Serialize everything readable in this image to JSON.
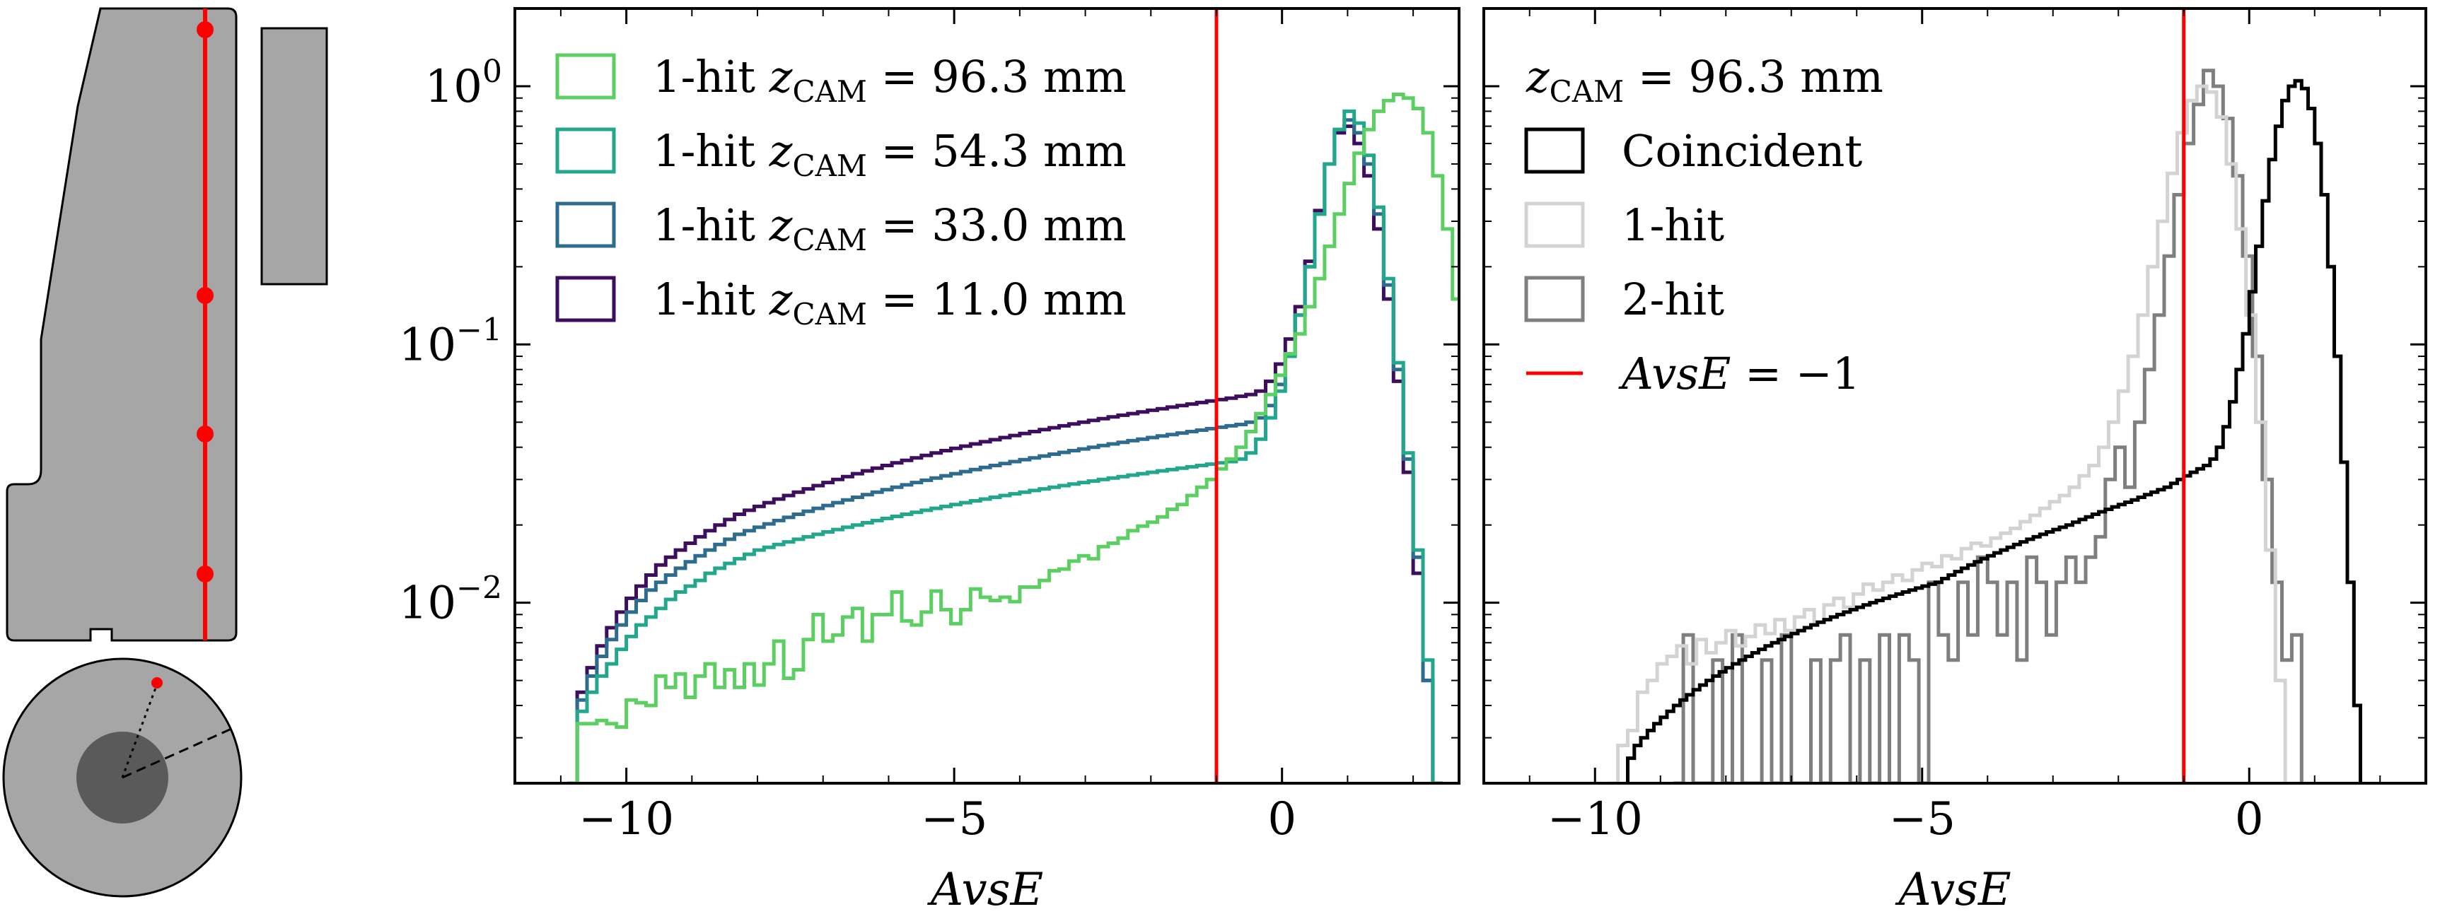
{
  "colors": {
    "detector_fill": "#a6a6a6",
    "detector_core": "#5a5a5a",
    "cut_line": "#ff0000",
    "green": "#5ccf63",
    "teal": "#22a68c",
    "blue": "#2d6b8f",
    "purple": "#3d0d5e",
    "black": "#000000",
    "lightgray": "#d3d3d3",
    "gray": "#7f7f7f"
  },
  "chart_data": [
    {
      "type": "line",
      "style": "step",
      "xlabel": "AvsE",
      "ylabel": "",
      "xlim": [
        -11.7,
        2.7
      ],
      "ylim": [
        0.002,
        2.0
      ],
      "yscale": "log",
      "xticks": [
        {
          "value": -10,
          "label": "−10"
        },
        {
          "value": -5,
          "label": "−5"
        },
        {
          "value": 0,
          "label": "0"
        }
      ],
      "yticks": [
        {
          "value": 1,
          "base": "10",
          "exp": "0"
        },
        {
          "value": 0.1,
          "base": "10",
          "exp": "−1"
        },
        {
          "value": 0.01,
          "base": "10",
          "exp": "−2"
        }
      ],
      "cut_x": -1,
      "legend_position": "top-left",
      "series": [
        {
          "name": "1-hit z_CAM = 96.3 mm",
          "prefix": "1-hit ",
          "var": "z",
          "sub": "CAM",
          "rest": " = 96.3 mm",
          "color_key": "green",
          "x_start": -10.9,
          "bin_width": 0.15,
          "values": [
            0.002,
            0.0034,
            0.0034,
            0.0035,
            0.0034,
            0.0033,
            0.0042,
            0.0041,
            0.004,
            0.0052,
            0.0047,
            0.0053,
            0.0043,
            0.0052,
            0.0058,
            0.0047,
            0.0055,
            0.0047,
            0.0058,
            0.0048,
            0.0058,
            0.0071,
            0.0051,
            0.0055,
            0.0072,
            0.009,
            0.0071,
            0.0075,
            0.0088,
            0.0095,
            0.0071,
            0.009,
            0.009,
            0.011,
            0.0085,
            0.0082,
            0.0092,
            0.0111,
            0.0094,
            0.0083,
            0.0094,
            0.0113,
            0.0105,
            0.0102,
            0.0105,
            0.0101,
            0.0115,
            0.0115,
            0.0122,
            0.0133,
            0.0135,
            0.0145,
            0.0152,
            0.0148,
            0.0165,
            0.017,
            0.0178,
            0.019,
            0.0198,
            0.0205,
            0.0215,
            0.023,
            0.024,
            0.026,
            0.028,
            0.03,
            0.033,
            0.036,
            0.04,
            0.046,
            0.054,
            0.064,
            0.076,
            0.092,
            0.11,
            0.14,
            0.18,
            0.24,
            0.32,
            0.42,
            0.55,
            0.68,
            0.8,
            0.88,
            0.93,
            0.9,
            0.82,
            0.66,
            0.45,
            0.28,
            0.15,
            0.07,
            0.03,
            0.011,
            0.003
          ]
        },
        {
          "name": "1-hit z_CAM = 54.3 mm",
          "prefix": "1-hit ",
          "var": "z",
          "sub": "CAM",
          "rest": " = 54.3 mm",
          "color_key": "teal",
          "x_start": -10.9,
          "bin_width": 0.15,
          "values": [
            0.002,
            0.0038,
            0.0045,
            0.0052,
            0.0058,
            0.0066,
            0.0074,
            0.0082,
            0.0088,
            0.0095,
            0.0103,
            0.011,
            0.0116,
            0.0122,
            0.013,
            0.0136,
            0.0142,
            0.0148,
            0.0154,
            0.016,
            0.0164,
            0.0168,
            0.0172,
            0.0176,
            0.018,
            0.0184,
            0.0188,
            0.0192,
            0.0196,
            0.02,
            0.0204,
            0.0208,
            0.0212,
            0.0216,
            0.022,
            0.0224,
            0.0228,
            0.0232,
            0.0236,
            0.024,
            0.0244,
            0.0248,
            0.0252,
            0.0256,
            0.026,
            0.0264,
            0.0268,
            0.0272,
            0.0276,
            0.028,
            0.0284,
            0.0288,
            0.0292,
            0.0296,
            0.03,
            0.0304,
            0.0308,
            0.0312,
            0.0316,
            0.032,
            0.0324,
            0.0328,
            0.0332,
            0.0336,
            0.034,
            0.0344,
            0.0348,
            0.0352,
            0.036,
            0.038,
            0.043,
            0.052,
            0.066,
            0.09,
            0.13,
            0.2,
            0.32,
            0.5,
            0.68,
            0.8,
            0.72,
            0.54,
            0.34,
            0.18,
            0.085,
            0.038,
            0.016,
            0.006,
            0.002
          ]
        },
        {
          "name": "1-hit z_CAM = 33.0 mm",
          "prefix": "1-hit ",
          "var": "z",
          "sub": "CAM",
          "rest": " = 33.0 mm",
          "color_key": "blue",
          "x_start": -10.9,
          "bin_width": 0.15,
          "values": [
            0.002,
            0.0042,
            0.0052,
            0.0062,
            0.0072,
            0.0082,
            0.0092,
            0.0102,
            0.0112,
            0.012,
            0.0128,
            0.0136,
            0.0144,
            0.0152,
            0.016,
            0.0168,
            0.0176,
            0.0184,
            0.019,
            0.0196,
            0.0202,
            0.0208,
            0.0214,
            0.022,
            0.0226,
            0.0232,
            0.0238,
            0.0244,
            0.025,
            0.0256,
            0.0262,
            0.0268,
            0.0274,
            0.028,
            0.0286,
            0.0292,
            0.0298,
            0.0304,
            0.031,
            0.0316,
            0.0322,
            0.0328,
            0.0334,
            0.034,
            0.0346,
            0.0352,
            0.0358,
            0.0364,
            0.037,
            0.0376,
            0.0382,
            0.0388,
            0.0394,
            0.04,
            0.0406,
            0.0412,
            0.0418,
            0.0424,
            0.043,
            0.0436,
            0.0442,
            0.0448,
            0.0454,
            0.046,
            0.0466,
            0.0472,
            0.0478,
            0.0484,
            0.049,
            0.05,
            0.052,
            0.058,
            0.07,
            0.092,
            0.13,
            0.2,
            0.32,
            0.5,
            0.68,
            0.74,
            0.66,
            0.5,
            0.32,
            0.17,
            0.08,
            0.036,
            0.015,
            0.005,
            0.002
          ]
        },
        {
          "name": "1-hit z_CAM = 11.0 mm",
          "prefix": "1-hit ",
          "var": "z",
          "sub": "CAM",
          "rest": " = 11.0 mm",
          "color_key": "purple",
          "x_start": -10.9,
          "bin_width": 0.15,
          "values": [
            0.002,
            0.0045,
            0.0056,
            0.0068,
            0.008,
            0.0092,
            0.0104,
            0.0116,
            0.0128,
            0.014,
            0.015,
            0.016,
            0.017,
            0.018,
            0.019,
            0.02,
            0.021,
            0.022,
            0.0228,
            0.0236,
            0.0244,
            0.0252,
            0.026,
            0.0268,
            0.0276,
            0.0284,
            0.0292,
            0.03,
            0.0308,
            0.0316,
            0.0324,
            0.0332,
            0.034,
            0.0348,
            0.0356,
            0.0364,
            0.0372,
            0.038,
            0.0388,
            0.0396,
            0.0404,
            0.0412,
            0.042,
            0.0428,
            0.0436,
            0.0444,
            0.0452,
            0.046,
            0.0468,
            0.0476,
            0.0484,
            0.0492,
            0.05,
            0.0508,
            0.0516,
            0.0524,
            0.0532,
            0.054,
            0.0548,
            0.0556,
            0.0564,
            0.0572,
            0.058,
            0.0588,
            0.0596,
            0.0604,
            0.0612,
            0.062,
            0.063,
            0.064,
            0.066,
            0.072,
            0.084,
            0.105,
            0.14,
            0.21,
            0.33,
            0.5,
            0.66,
            0.7,
            0.6,
            0.45,
            0.28,
            0.15,
            0.072,
            0.032,
            0.013,
            0.005,
            0.002
          ]
        }
      ]
    },
    {
      "type": "line",
      "style": "step",
      "xlabel": "AvsE",
      "ylabel": "",
      "xlim": [
        -11.7,
        2.7
      ],
      "ylim": [
        0.002,
        2.0
      ],
      "yscale": "log",
      "xticks": [
        {
          "value": -10,
          "label": "−10"
        },
        {
          "value": -5,
          "label": "−5"
        },
        {
          "value": 0,
          "label": "0"
        }
      ],
      "cut_x": -1,
      "legend_position": "top-left",
      "legend_title": {
        "var": "z",
        "sub": "CAM",
        "rest": " = 96.3 mm"
      },
      "series": [
        {
          "name": "Coincident",
          "color_key": "black",
          "x_start": -9.5,
          "bin_width": 0.1,
          "values": [
            0.0025,
            0.0028,
            0.003,
            0.0032,
            0.0034,
            0.0036,
            0.0038,
            0.004,
            0.0042,
            0.0044,
            0.0046,
            0.0048,
            0.005,
            0.0052,
            0.0054,
            0.0056,
            0.0058,
            0.006,
            0.0062,
            0.0064,
            0.0066,
            0.0068,
            0.007,
            0.0072,
            0.0074,
            0.0076,
            0.0078,
            0.008,
            0.0082,
            0.0084,
            0.0086,
            0.0088,
            0.009,
            0.0092,
            0.0094,
            0.0096,
            0.0098,
            0.01,
            0.0102,
            0.0104,
            0.0106,
            0.0108,
            0.011,
            0.0112,
            0.0114,
            0.0116,
            0.0118,
            0.012,
            0.0124,
            0.0128,
            0.0132,
            0.0136,
            0.014,
            0.0144,
            0.0148,
            0.0152,
            0.0156,
            0.016,
            0.0164,
            0.0168,
            0.0172,
            0.0176,
            0.018,
            0.0184,
            0.0188,
            0.0192,
            0.0196,
            0.02,
            0.0205,
            0.021,
            0.0215,
            0.022,
            0.0225,
            0.023,
            0.0235,
            0.024,
            0.0245,
            0.025,
            0.0256,
            0.0262,
            0.0268,
            0.0274,
            0.028,
            0.029,
            0.03,
            0.031,
            0.032,
            0.033,
            0.034,
            0.036,
            0.04,
            0.048,
            0.06,
            0.08,
            0.11,
            0.16,
            0.24,
            0.36,
            0.52,
            0.7,
            0.88,
            1.0,
            1.05,
            0.98,
            0.82,
            0.6,
            0.38,
            0.2,
            0.09,
            0.035,
            0.012,
            0.004
          ]
        },
        {
          "name": "1-hit",
          "color_key": "lightgray",
          "x_start": -9.8,
          "bin_width": 0.15,
          "values": [
            0.002,
            0.0028,
            0.0032,
            0.0045,
            0.005,
            0.0058,
            0.0062,
            0.0068,
            0.0058,
            0.0072,
            0.0064,
            0.007,
            0.0078,
            0.0068,
            0.0074,
            0.0082,
            0.0076,
            0.0086,
            0.0078,
            0.0088,
            0.0094,
            0.0084,
            0.0098,
            0.0104,
            0.0096,
            0.0108,
            0.0118,
            0.0112,
            0.012,
            0.0128,
            0.0122,
            0.0134,
            0.0142,
            0.0138,
            0.0152,
            0.0148,
            0.0162,
            0.017,
            0.0166,
            0.0178,
            0.0186,
            0.0194,
            0.0206,
            0.0218,
            0.0232,
            0.0246,
            0.026,
            0.028,
            0.031,
            0.034,
            0.04,
            0.05,
            0.066,
            0.09,
            0.13,
            0.2,
            0.3,
            0.46,
            0.66,
            0.88,
            1.0,
            0.95,
            0.76,
            0.5,
            0.28,
            0.13,
            0.05,
            0.016,
            0.005
          ]
        },
        {
          "name": "2-hit",
          "color_key": "gray",
          "x_start": -8.8,
          "bin_width": 0.15,
          "values": [
            0.002,
            0.0075,
            0.002,
            0.002,
            0.006,
            0.002,
            0.0075,
            0.002,
            0.002,
            0.006,
            0.002,
            0.0075,
            0.002,
            0.002,
            0.006,
            0.002,
            0.006,
            0.0075,
            0.002,
            0.006,
            0.002,
            0.0075,
            0.002,
            0.0075,
            0.006,
            0.002,
            0.012,
            0.0075,
            0.006,
            0.012,
            0.0075,
            0.015,
            0.012,
            0.0075,
            0.012,
            0.006,
            0.015,
            0.012,
            0.0075,
            0.012,
            0.015,
            0.012,
            0.015,
            0.018,
            0.03,
            0.04,
            0.028,
            0.05,
            0.08,
            0.13,
            0.22,
            0.38,
            0.6,
            0.85,
            1.15,
            1.0,
            0.75,
            0.45,
            0.22,
            0.09,
            0.03,
            0.012,
            0.006,
            0.0075
          ]
        },
        {
          "name": "AvsE = −1",
          "var": "AvsE",
          "rest": " = −1",
          "color_key": "cut_line",
          "kind": "vline",
          "x": -1
        }
      ]
    }
  ]
}
